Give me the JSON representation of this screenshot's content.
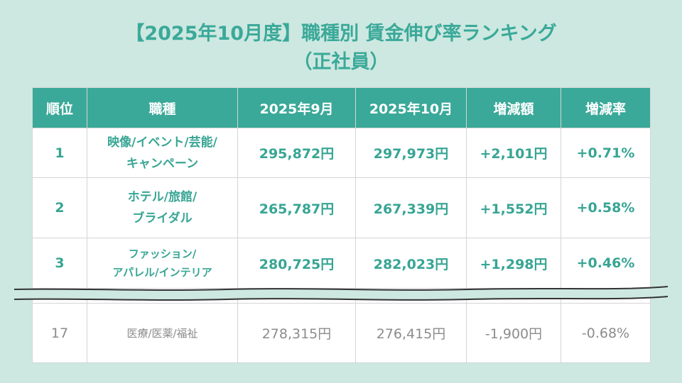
{
  "title": {
    "line1": "【2025年10月度】職種別 賃金伸び率ランキング",
    "line2": "（正社員）"
  },
  "table": {
    "headers": [
      "順位",
      "職種",
      "2025年9月",
      "2025年10月",
      "増減額",
      "増減率"
    ],
    "rows": [
      {
        "rank": "1",
        "job_line1": "映像/イベント/芸能/",
        "job_line2": "キャンペーン",
        "sep": "295,872円",
        "oct": "297,973円",
        "diff": "+2,101円",
        "rate": "+0.71%"
      },
      {
        "rank": "2",
        "job_line1": "ホテル/旅館/",
        "job_line2": "ブライダル",
        "sep": "265,787円",
        "oct": "267,339円",
        "diff": "+1,552円",
        "rate": "+0.58%"
      },
      {
        "rank": "3",
        "job_line1": "ファッション/",
        "job_line2": "アパレル/インテリア",
        "sep": "280,725円",
        "oct": "282,023円",
        "diff": "+1,298円",
        "rate": "+0.46%"
      },
      {
        "rank": "17",
        "job_line1": "医療/医薬/福祉",
        "sep": "278,315円",
        "oct": "276,415円",
        "diff": "-1,900円",
        "rate": "-0.68%"
      }
    ]
  },
  "colors": {
    "background": "#cde8e1",
    "accent": "#3aa999",
    "muted_text": "#8c8c8c"
  },
  "icons": [
    "wavy-break-line"
  ]
}
